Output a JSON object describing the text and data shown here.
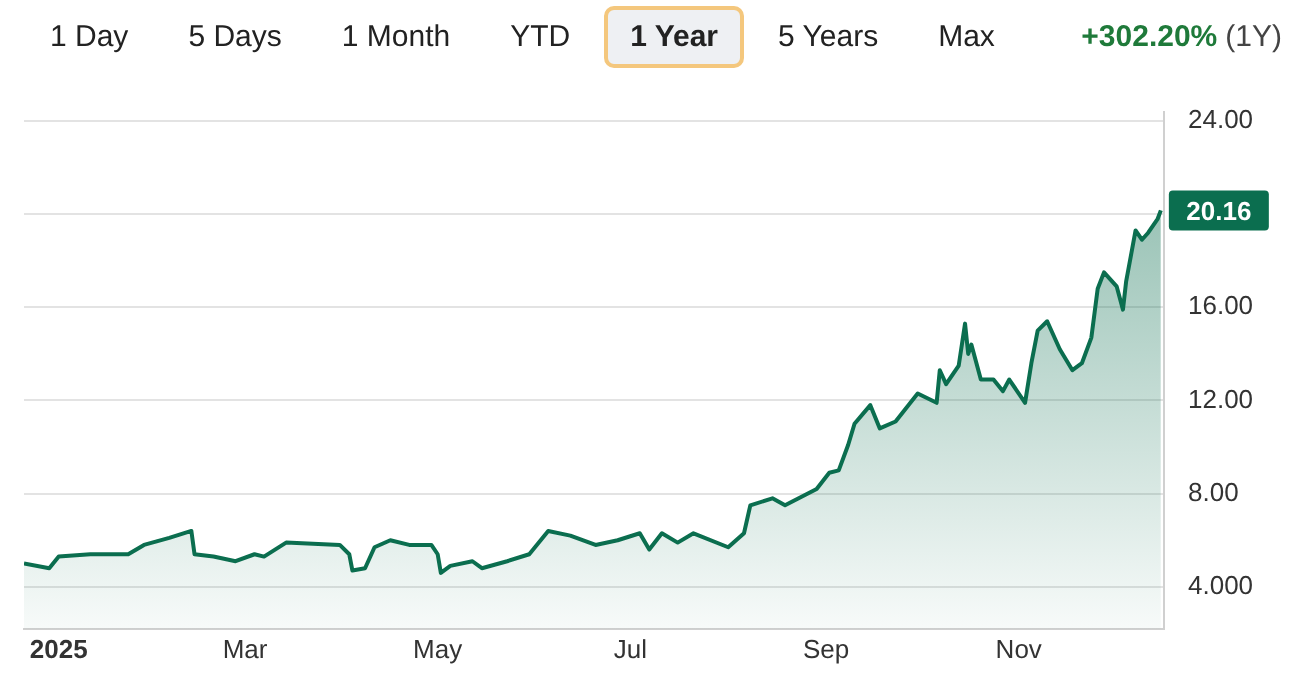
{
  "chart_data": {
    "type": "area",
    "x": [
      "2024-12-21",
      "2024-12-29",
      "2025-01-01",
      "2025-01-11",
      "2025-01-23",
      "2025-01-28",
      "2025-02-05",
      "2025-02-12",
      "2025-02-13",
      "2025-02-19",
      "2025-02-26",
      "2025-03-04",
      "2025-03-07",
      "2025-03-14",
      "2025-03-31",
      "2025-04-03",
      "2025-04-04",
      "2025-04-08",
      "2025-04-11",
      "2025-04-16",
      "2025-04-22",
      "2025-04-29",
      "2025-05-01",
      "2025-05-02",
      "2025-05-05",
      "2025-05-12",
      "2025-05-15",
      "2025-05-23",
      "2025-05-30",
      "2025-06-05",
      "2025-06-12",
      "2025-06-20",
      "2025-06-27",
      "2025-07-04",
      "2025-07-07",
      "2025-07-11",
      "2025-07-16",
      "2025-07-21",
      "2025-08-01",
      "2025-08-06",
      "2025-08-08",
      "2025-08-15",
      "2025-08-19",
      "2025-08-29",
      "2025-09-02",
      "2025-09-05",
      "2025-09-08",
      "2025-09-10",
      "2025-09-15",
      "2025-09-18",
      "2025-09-23",
      "2025-09-30",
      "2025-10-06",
      "2025-10-07",
      "2025-10-09",
      "2025-10-13",
      "2025-10-15",
      "2025-10-16",
      "2025-10-17",
      "2025-10-20",
      "2025-10-24",
      "2025-10-27",
      "2025-10-29",
      "2025-11-03",
      "2025-11-05",
      "2025-11-07",
      "2025-11-10",
      "2025-11-14",
      "2025-11-18",
      "2025-11-21",
      "2025-11-24",
      "2025-11-26",
      "2025-11-28",
      "2025-12-02",
      "2025-12-04",
      "2025-12-05",
      "2025-12-08",
      "2025-12-10",
      "2025-12-12",
      "2025-12-15",
      "2025-12-16"
    ],
    "series": [
      {
        "color": "#0b6e4f",
        "values": [
          5.0,
          4.8,
          5.3,
          5.4,
          5.4,
          5.8,
          6.1,
          6.4,
          5.4,
          5.3,
          5.1,
          5.4,
          5.3,
          5.9,
          5.8,
          5.4,
          4.7,
          4.8,
          5.7,
          6.0,
          5.8,
          5.8,
          5.4,
          4.6,
          4.9,
          5.1,
          4.8,
          5.1,
          5.4,
          6.4,
          6.2,
          5.8,
          6.0,
          6.3,
          5.6,
          6.3,
          5.9,
          6.3,
          5.7,
          6.3,
          7.5,
          7.8,
          7.5,
          8.2,
          8.9,
          9.0,
          10.1,
          11.0,
          11.8,
          10.8,
          11.1,
          12.3,
          11.9,
          13.3,
          12.7,
          13.5,
          15.3,
          14.0,
          14.4,
          12.9,
          12.9,
          12.4,
          12.9,
          11.9,
          13.6,
          15.0,
          15.4,
          14.2,
          13.3,
          13.6,
          14.7,
          16.8,
          17.5,
          16.9,
          15.9,
          17.1,
          19.3,
          18.9,
          19.2,
          19.8,
          20.16
        ]
      }
    ],
    "xlim": [
      "2024-12-21",
      "2025-12-17"
    ],
    "xticks": [
      {
        "value": "2025-01-01",
        "label": "2025"
      },
      {
        "value": "2025-03-01",
        "label": "Mar"
      },
      {
        "value": "2025-05-01",
        "label": "May"
      },
      {
        "value": "2025-07-01",
        "label": "Jul"
      },
      {
        "value": "2025-09-01",
        "label": "Sep"
      },
      {
        "value": "2025-11-01",
        "label": "Nov"
      }
    ],
    "ylim": [
      2.2,
      24.4
    ],
    "yticks": [
      {
        "value": 4,
        "label": "4.000"
      },
      {
        "value": 8,
        "label": "8.00"
      },
      {
        "value": 12,
        "label": "12.00"
      },
      {
        "value": 16,
        "label": "16.00"
      },
      {
        "value": 20,
        "label": null
      },
      {
        "value": 24,
        "label": "24.00"
      }
    ],
    "grid": "y",
    "legend": false,
    "marker": "none",
    "line_style": "solid",
    "annotations": [
      "1 Day",
      "5 Days",
      "1 Month",
      "YTD",
      "1 Year",
      "5 Years",
      "Max",
      "+302.20%",
      "(1Y)",
      {
        "text": "20.16",
        "x": "2025-12-16",
        "y": 20.16
      }
    ]
  }
}
